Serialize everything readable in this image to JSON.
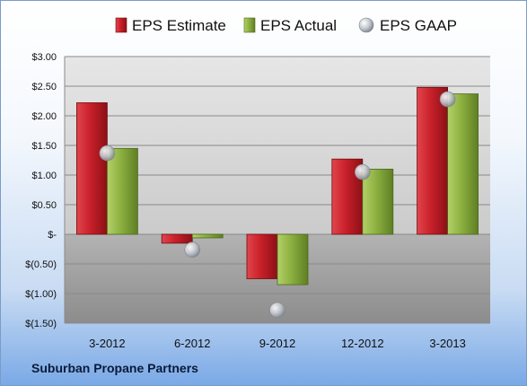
{
  "company_name": "Suburban Propane Partners",
  "chart_data": {
    "type": "bar",
    "categories": [
      "3-2012",
      "6-2012",
      "9-2012",
      "12-2012",
      "3-2013"
    ],
    "series": [
      {
        "name": "EPS Estimate",
        "kind": "bar",
        "color": "#c0202a",
        "values": [
          2.22,
          -0.15,
          -0.75,
          1.27,
          2.48
        ]
      },
      {
        "name": "EPS Actual",
        "kind": "bar",
        "color": "#8cb040",
        "values": [
          1.45,
          -0.06,
          -0.85,
          1.1,
          2.37
        ]
      },
      {
        "name": "EPS GAAP",
        "kind": "marker",
        "color": "#b8bcc4",
        "values": [
          1.37,
          -0.26,
          -1.28,
          1.05,
          2.28
        ]
      }
    ],
    "y_ticks": [
      {
        "value": 3.0,
        "label": "$3.00"
      },
      {
        "value": 2.5,
        "label": "$2.50"
      },
      {
        "value": 2.0,
        "label": "$2.00"
      },
      {
        "value": 1.5,
        "label": "$1.50"
      },
      {
        "value": 1.0,
        "label": "$1.00"
      },
      {
        "value": 0.5,
        "label": "$0.50"
      },
      {
        "value": 0.0,
        "label": "$-"
      },
      {
        "value": -0.5,
        "label": "$(0.50)"
      },
      {
        "value": -1.0,
        "label": "$(1.00)"
      },
      {
        "value": -1.5,
        "label": "$(1.50)"
      }
    ],
    "ylim": [
      -1.5,
      3.0
    ],
    "grid": true,
    "legend_position": "top"
  }
}
